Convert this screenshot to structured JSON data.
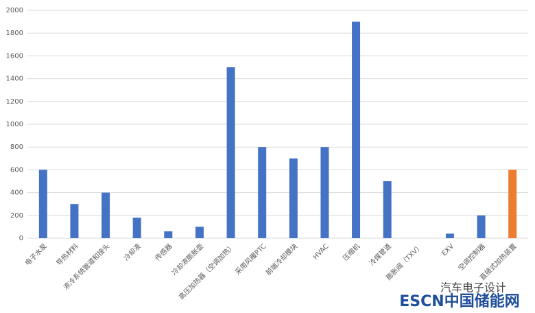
{
  "chart_data": {
    "type": "bar",
    "categories": [
      "电子水泵",
      "导热材料",
      "液冷系统管道和接头",
      "冷却液",
      "传感器",
      "冷却液膨胀壶",
      "高压加热器（空调加热）",
      "采用风暖PTC",
      "前端冷却模块",
      "HVAC",
      "压缩机",
      "冷媒管道",
      "膨胀阀（TXV）",
      "EXV",
      "空调控制器",
      "直接式加热装置"
    ],
    "values": [
      600,
      300,
      400,
      180,
      60,
      100,
      1500,
      800,
      700,
      800,
      1900,
      500,
      null,
      40,
      200,
      600
    ],
    "colors": [
      "#4472c4",
      "#4472c4",
      "#4472c4",
      "#4472c4",
      "#4472c4",
      "#4472c4",
      "#4472c4",
      "#4472c4",
      "#4472c4",
      "#4472c4",
      "#4472c4",
      "#4472c4",
      "#4472c4",
      "#4472c4",
      "#4472c4",
      "#ed7d31"
    ],
    "ylim": [
      0,
      2000
    ],
    "yticks": [
      0,
      200,
      400,
      600,
      800,
      1000,
      1200,
      1400,
      1600,
      1800,
      2000
    ],
    "grid": true
  },
  "watermarks": [
    "汽车电子设计",
    "ESCN中国储能网"
  ]
}
